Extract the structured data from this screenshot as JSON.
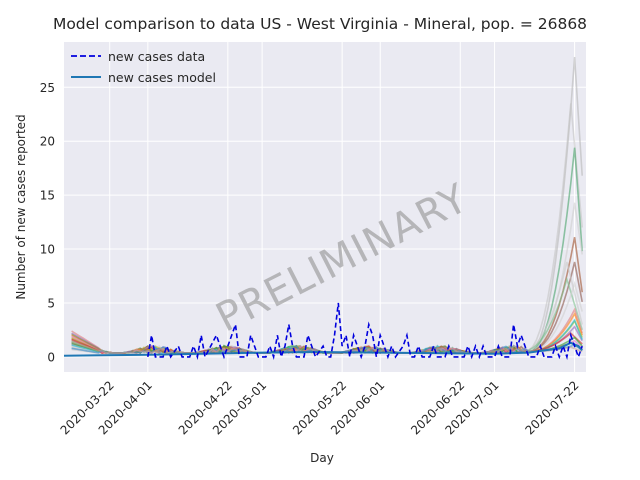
{
  "chart_data": {
    "type": "line",
    "title": "Model comparison to data US - West Virginia - Mineral, pop. = 26868",
    "xlabel": "Day",
    "ylabel": "Number of new cases reported",
    "x_start": "2020-03-10",
    "x_end": "2020-07-25",
    "xticks": [
      "2020-03-22",
      "2020-04-01",
      "2020-04-22",
      "2020-05-01",
      "2020-05-22",
      "2020-06-01",
      "2020-06-22",
      "2020-07-01",
      "2020-07-22"
    ],
    "ylim": [
      -1.4,
      29.2
    ],
    "yticks": [
      0,
      5,
      10,
      15,
      20,
      25
    ],
    "grid": true,
    "legend_position": "top-left",
    "watermark": "PRELIMINARY",
    "series": [
      {
        "name": "new cases data",
        "style": "dashed",
        "color": "#0000dd",
        "points": [
          [
            "2020-04-01",
            0
          ],
          [
            "2020-04-02",
            2
          ],
          [
            "2020-04-03",
            0
          ],
          [
            "2020-04-05",
            0
          ],
          [
            "2020-04-06",
            1
          ],
          [
            "2020-04-07",
            0
          ],
          [
            "2020-04-09",
            1
          ],
          [
            "2020-04-10",
            0
          ],
          [
            "2020-04-12",
            0
          ],
          [
            "2020-04-13",
            1
          ],
          [
            "2020-04-14",
            0
          ],
          [
            "2020-04-15",
            2
          ],
          [
            "2020-04-16",
            0
          ],
          [
            "2020-04-19",
            2
          ],
          [
            "2020-04-20",
            1
          ],
          [
            "2020-04-21",
            0
          ],
          [
            "2020-04-24",
            3
          ],
          [
            "2020-04-25",
            0
          ],
          [
            "2020-04-27",
            0
          ],
          [
            "2020-04-28",
            2
          ],
          [
            "2020-04-29",
            1
          ],
          [
            "2020-04-30",
            0
          ],
          [
            "2020-05-02",
            0
          ],
          [
            "2020-05-03",
            1
          ],
          [
            "2020-05-04",
            0
          ],
          [
            "2020-05-05",
            2
          ],
          [
            "2020-05-06",
            0
          ],
          [
            "2020-05-07",
            1
          ],
          [
            "2020-05-08",
            3
          ],
          [
            "2020-05-09",
            1
          ],
          [
            "2020-05-10",
            0
          ],
          [
            "2020-05-12",
            0
          ],
          [
            "2020-05-13",
            2
          ],
          [
            "2020-05-14",
            1
          ],
          [
            "2020-05-15",
            0
          ],
          [
            "2020-05-17",
            1
          ],
          [
            "2020-05-18",
            0
          ],
          [
            "2020-05-19",
            0
          ],
          [
            "2020-05-20",
            2
          ],
          [
            "2020-05-21",
            5
          ],
          [
            "2020-05-22",
            1
          ],
          [
            "2020-05-23",
            2
          ],
          [
            "2020-05-24",
            0
          ],
          [
            "2020-05-25",
            2
          ],
          [
            "2020-05-26",
            1
          ],
          [
            "2020-05-27",
            0
          ],
          [
            "2020-05-28",
            1
          ],
          [
            "2020-05-29",
            3
          ],
          [
            "2020-05-30",
            2
          ],
          [
            "2020-05-31",
            0
          ],
          [
            "2020-06-01",
            2
          ],
          [
            "2020-06-02",
            1
          ],
          [
            "2020-06-03",
            0
          ],
          [
            "2020-06-04",
            1
          ],
          [
            "2020-06-05",
            0
          ],
          [
            "2020-06-07",
            1
          ],
          [
            "2020-06-08",
            2
          ],
          [
            "2020-06-09",
            0
          ],
          [
            "2020-06-10",
            0
          ],
          [
            "2020-06-11",
            1
          ],
          [
            "2020-06-12",
            0
          ],
          [
            "2020-06-14",
            0
          ],
          [
            "2020-06-15",
            1
          ],
          [
            "2020-06-16",
            0
          ],
          [
            "2020-06-18",
            0
          ],
          [
            "2020-06-19",
            1
          ],
          [
            "2020-06-20",
            0
          ],
          [
            "2020-06-23",
            0
          ],
          [
            "2020-06-24",
            1
          ],
          [
            "2020-06-25",
            0
          ],
          [
            "2020-06-26",
            1
          ],
          [
            "2020-06-27",
            0
          ],
          [
            "2020-06-28",
            1
          ],
          [
            "2020-06-29",
            0
          ],
          [
            "2020-07-01",
            0
          ],
          [
            "2020-07-02",
            1
          ],
          [
            "2020-07-03",
            0
          ],
          [
            "2020-07-05",
            0
          ],
          [
            "2020-07-06",
            3
          ],
          [
            "2020-07-07",
            1
          ],
          [
            "2020-07-08",
            2
          ],
          [
            "2020-07-09",
            1
          ],
          [
            "2020-07-10",
            0
          ],
          [
            "2020-07-12",
            0
          ],
          [
            "2020-07-13",
            1
          ],
          [
            "2020-07-14",
            0
          ],
          [
            "2020-07-16",
            0
          ],
          [
            "2020-07-17",
            1
          ],
          [
            "2020-07-18",
            0
          ],
          [
            "2020-07-19",
            1
          ],
          [
            "2020-07-20",
            0
          ],
          [
            "2020-07-21",
            2
          ],
          [
            "2020-07-22",
            1
          ],
          [
            "2020-07-23",
            0
          ],
          [
            "2020-07-24",
            1
          ]
        ]
      },
      {
        "name": "new cases model",
        "style": "solid",
        "color": "#1f77b4",
        "points": [
          [
            "2020-03-10",
            0.1
          ],
          [
            "2020-03-20",
            0.15
          ],
          [
            "2020-04-01",
            0.2
          ],
          [
            "2020-04-15",
            0.3
          ],
          [
            "2020-05-01",
            0.4
          ],
          [
            "2020-05-15",
            0.45
          ],
          [
            "2020-06-01",
            0.4
          ],
          [
            "2020-06-15",
            0.35
          ],
          [
            "2020-07-01",
            0.3
          ],
          [
            "2020-07-10",
            0.4
          ],
          [
            "2020-07-18",
            0.8
          ],
          [
            "2020-07-21",
            1.3
          ],
          [
            "2020-07-23",
            1.0
          ],
          [
            "2020-07-24",
            0.6
          ]
        ]
      }
    ],
    "ensemble": [
      {
        "color": "#b8b8b8",
        "start": 0.6,
        "peak_date": "2020-07-22",
        "peak": 27.8,
        "end": 16.8
      },
      {
        "color": "#c4c4c4",
        "start": 0.5,
        "peak_date": "2020-07-21",
        "peak": 23.5,
        "end": 12.0
      },
      {
        "color": "#4aa36a",
        "start": 1.2,
        "peak_date": "2020-07-22",
        "peak": 19.4,
        "end": 9.8
      },
      {
        "color": "#cfcfcf",
        "start": 0.8,
        "peak_date": "2020-07-22",
        "peak": 14.3,
        "end": 9.5
      },
      {
        "color": "#a0522d",
        "start": 1.5,
        "peak_date": "2020-07-22",
        "peak": 11.1,
        "end": 6.0
      },
      {
        "color": "#8c564b",
        "start": 1.0,
        "peak_date": "2020-07-22",
        "peak": 8.8,
        "end": 5.1
      },
      {
        "color": "#c9c9c9",
        "start": 0.7,
        "peak_date": "2020-07-20",
        "peak": 8.8,
        "end": 3.0
      },
      {
        "color": "#7fbf8f",
        "start": 1.3,
        "peak_date": "2020-07-20",
        "peak": 7.2,
        "end": 2.5
      },
      {
        "color": "#d0d0d0",
        "start": 0.9,
        "peak_date": "2020-07-22",
        "peak": 6.8,
        "end": 4.2
      },
      {
        "color": "#e07b7b",
        "start": 2.2,
        "peak_date": "2020-07-22",
        "peak": 4.4,
        "end": 2.2
      },
      {
        "color": "#ff7f0e",
        "start": 1.8,
        "peak_date": "2020-07-22",
        "peak": 4.0,
        "end": 2.0
      },
      {
        "color": "#bcbd22",
        "start": 1.6,
        "peak_date": "2020-07-22",
        "peak": 3.3,
        "end": 1.8
      },
      {
        "color": "#9467bd",
        "start": 2.0,
        "peak_date": "2020-07-22",
        "peak": 2.8,
        "end": 1.5
      },
      {
        "color": "#17becf",
        "start": 0.9,
        "peak_date": "2020-07-22",
        "peak": 3.4,
        "end": 1.6
      },
      {
        "color": "#d62728",
        "start": 1.4,
        "peak_date": "2020-07-21",
        "peak": 2.2,
        "end": 1.2
      },
      {
        "color": "#2ca02c",
        "start": 1.1,
        "peak_date": "2020-07-22",
        "peak": 1.8,
        "end": 1.0
      },
      {
        "color": "#e377c2",
        "start": 1.7,
        "peak_date": "2020-07-22",
        "peak": 1.5,
        "end": 0.8
      },
      {
        "color": "#8c8c3a",
        "start": 1.9,
        "peak_date": "2020-07-21",
        "peak": 1.3,
        "end": 0.7
      },
      {
        "color": "#3b8fd0",
        "start": 0.6,
        "peak_date": "2020-07-22",
        "peak": 1.1,
        "end": 0.6
      },
      {
        "color": "#c49c94",
        "start": 1.2,
        "peak_date": "2020-07-21",
        "peak": 0.9,
        "end": 0.5
      }
    ]
  }
}
